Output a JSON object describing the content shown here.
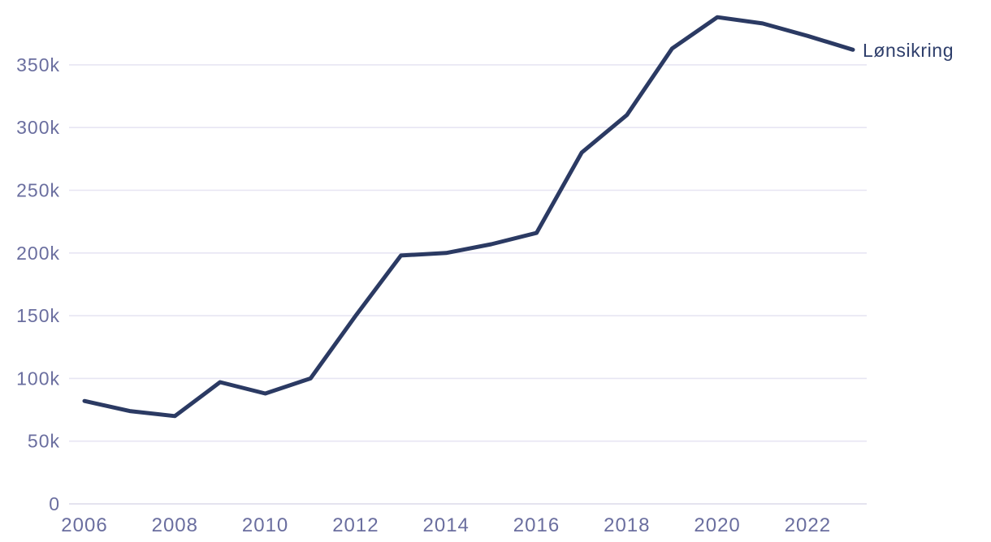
{
  "chart_data": {
    "type": "line",
    "title": "",
    "x": [
      2006,
      2007,
      2008,
      2009,
      2010,
      2011,
      2012,
      2013,
      2014,
      2015,
      2016,
      2017,
      2018,
      2019,
      2020,
      2021,
      2022,
      2023
    ],
    "series": [
      {
        "name": "Lønsikring",
        "values": [
          82000,
          74000,
          70000,
          97000,
          88000,
          100000,
          150000,
          198000,
          200000,
          207000,
          216000,
          280000,
          310000,
          363000,
          388000,
          383000,
          373000,
          362000
        ]
      }
    ],
    "xlabel": "",
    "ylabel": "",
    "xlim": [
      2006,
      2023
    ],
    "ylim": [
      0,
      400000
    ],
    "grid": true,
    "legend_position": "line-end-right",
    "y_ticks": [
      {
        "value": 0,
        "label": "0"
      },
      {
        "value": 50000,
        "label": "50k"
      },
      {
        "value": 100000,
        "label": "100k"
      },
      {
        "value": 150000,
        "label": "150k"
      },
      {
        "value": 200000,
        "label": "200k"
      },
      {
        "value": 250000,
        "label": "250k"
      },
      {
        "value": 300000,
        "label": "300k"
      },
      {
        "value": 350000,
        "label": "350k"
      }
    ],
    "x_ticks": [
      {
        "value": 2006,
        "label": "2006"
      },
      {
        "value": 2008,
        "label": "2008"
      },
      {
        "value": 2010,
        "label": "2010"
      },
      {
        "value": 2012,
        "label": "2012"
      },
      {
        "value": 2014,
        "label": "2014"
      },
      {
        "value": 2016,
        "label": "2016"
      },
      {
        "value": 2018,
        "label": "2018"
      },
      {
        "value": 2020,
        "label": "2020"
      },
      {
        "value": 2022,
        "label": "2022"
      }
    ],
    "colors": {
      "line": "#2b3a63",
      "series_label": "#2e3e6b",
      "tick_label": "#6a6e9f",
      "gridline": "#e7e5f3",
      "axis_line": "#dcdaea",
      "background": "#ffffff"
    }
  }
}
